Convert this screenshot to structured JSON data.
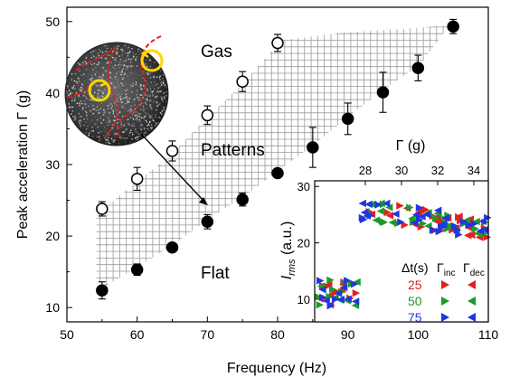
{
  "chart_data": [
    {
      "type": "scatter",
      "xlabel": "Frequency (Hz)",
      "ylabel": "Peak acceleration Γ (g)",
      "xlim": [
        50,
        110
      ],
      "ylim": [
        8,
        52
      ],
      "x_ticks": [
        "50",
        "60",
        "70",
        "80",
        "90",
        "100",
        "110"
      ],
      "y_ticks": [
        "10",
        "20",
        "30",
        "40",
        "50"
      ],
      "region_labels": {
        "gas": "Gas",
        "patterns": "Patterns",
        "flat": "Flat"
      },
      "hatched_region": "Patterns",
      "series": [
        {
          "marker": "open-circle",
          "points": [
            {
              "x": 55,
              "y": 23.8,
              "err": 1.0
            },
            {
              "x": 60,
              "y": 28.0,
              "err": 1.6
            },
            {
              "x": 65,
              "y": 31.9,
              "err": 1.4
            },
            {
              "x": 70,
              "y": 36.9,
              "err": 1.3
            },
            {
              "x": 75,
              "y": 41.6,
              "err": 1.4
            },
            {
              "x": 80,
              "y": 47.0,
              "err": 1.2
            }
          ]
        },
        {
          "marker": "filled-circle",
          "points": [
            {
              "x": 55,
              "y": 12.4,
              "err": 1.2
            },
            {
              "x": 60,
              "y": 15.3,
              "err": 0.8
            },
            {
              "x": 65,
              "y": 18.4,
              "err": 0.5
            },
            {
              "x": 70,
              "y": 22.0,
              "err": 1.0
            },
            {
              "x": 75,
              "y": 25.1,
              "err": 0.9
            },
            {
              "x": 80,
              "y": 28.8,
              "err": 0.6
            },
            {
              "x": 85,
              "y": 32.4,
              "err": 2.8
            },
            {
              "x": 90,
              "y": 36.4,
              "err": 2.2
            },
            {
              "x": 95,
              "y": 40.1,
              "err": 2.8
            },
            {
              "x": 100,
              "y": 43.5,
              "err": 1.8
            },
            {
              "x": 105,
              "y": 49.3,
              "err": 1.0
            }
          ]
        }
      ]
    },
    {
      "type": "scatter",
      "inset": true,
      "xlabel": "Γ (g)",
      "ylabel": "I_rms (a.u.)",
      "xlim": [
        25.2,
        34.8
      ],
      "ylim": [
        6,
        31
      ],
      "x_ticks": [
        "28",
        "30",
        "32",
        "34"
      ],
      "y_ticks": [
        "10",
        "20",
        "30"
      ],
      "x_tick_values": [
        28,
        30,
        32,
        34
      ],
      "y_tick_values": [
        10,
        20,
        30
      ],
      "legend_header": {
        "dt": "Δt(s)",
        "inc": "Γinc",
        "dec": "Γdec"
      },
      "series": [
        {
          "name": "25",
          "color": "#e02020"
        },
        {
          "name": "50",
          "color": "#1e9a2a"
        },
        {
          "name": "75",
          "color": "#2036e0"
        }
      ],
      "flat_cluster": {
        "x_range": [
          25.4,
          27.6
        ],
        "y_range": [
          8.5,
          13.5
        ]
      },
      "pattern_cluster": {
        "x_range": [
          27.8,
          34.8
        ],
        "y_range": [
          20,
          27
        ]
      }
    }
  ],
  "colors": {
    "hatch": "#9a9a9a",
    "red_dash": "#e02020",
    "yellow_circle": "#ffd800",
    "arrow": "#000000"
  }
}
